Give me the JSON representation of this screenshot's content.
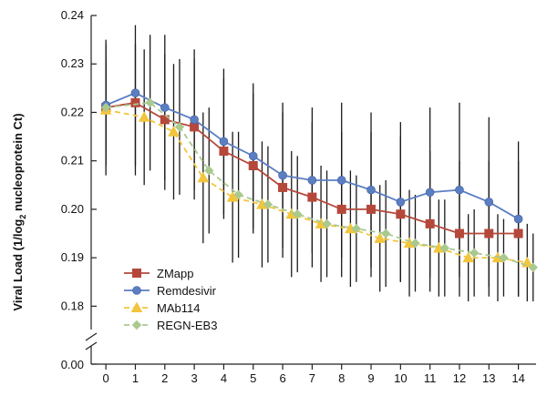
{
  "chart_data": {
    "type": "line",
    "title": "",
    "xlabel": "",
    "ylabel_prefix": "Viral Load (1/log",
    "ylabel_sub": "2",
    "ylabel_suffix": " nucleoprotein Ct)",
    "xlim": [
      -0.5,
      14.6
    ],
    "ylim": [
      0.178,
      0.24
    ],
    "y_break": true,
    "y_break_value_label": "0.00",
    "xticks": [
      0,
      1,
      2,
      3,
      4,
      5,
      6,
      7,
      8,
      9,
      10,
      11,
      12,
      13,
      14
    ],
    "xtick_labels": [
      "0",
      "1",
      "2",
      "3",
      "4",
      "5",
      "6",
      "7",
      "8",
      "9",
      "10",
      "11",
      "12",
      "13",
      "14"
    ],
    "yticks": [
      0.18,
      0.19,
      0.2,
      0.21,
      0.22,
      0.23,
      0.24
    ],
    "ytick_labels": [
      "0.18",
      "0.19",
      "0.20",
      "0.21",
      "0.22",
      "0.23",
      "0.24"
    ],
    "legend_position": "bottom-left",
    "colors": {
      "axis": "#222222",
      "errorbar": "#1a1a1a"
    },
    "series": [
      {
        "name": "ZMapp",
        "color": "#b5483b",
        "marker": "square",
        "dashed": false,
        "x": [
          0,
          1,
          2,
          3,
          4,
          5,
          6,
          7,
          8,
          9,
          10,
          11,
          12,
          13,
          14
        ],
        "y": [
          0.221,
          0.222,
          0.2185,
          0.217,
          0.212,
          0.209,
          0.2045,
          0.2025,
          0.2,
          0.2,
          0.199,
          0.197,
          0.195,
          0.195,
          0.195
        ],
        "err_low": [
          0.207,
          0.207,
          0.204,
          0.202,
          0.198,
          0.195,
          0.19,
          0.188,
          0.186,
          0.186,
          0.185,
          0.183,
          0.182,
          0.182,
          0.182
        ],
        "err_high": [
          0.235,
          0.234,
          0.232,
          0.231,
          0.227,
          0.224,
          0.22,
          0.218,
          0.216,
          0.216,
          0.215,
          0.212,
          0.21,
          0.21,
          0.21
        ]
      },
      {
        "name": "Remdesivir",
        "color": "#5b7ec2",
        "marker": "circle",
        "dashed": false,
        "x": [
          0,
          1,
          2,
          3,
          4,
          5,
          6,
          7,
          8,
          9,
          10,
          11,
          12,
          13,
          14
        ],
        "y": [
          0.2215,
          0.224,
          0.221,
          0.2185,
          0.214,
          0.211,
          0.207,
          0.206,
          0.206,
          0.204,
          0.2015,
          0.2035,
          0.204,
          0.2015,
          0.198
        ],
        "err_low": [
          0.209,
          0.209,
          0.206,
          0.204,
          0.199,
          0.196,
          0.192,
          0.191,
          0.19,
          0.188,
          0.185,
          0.186,
          0.186,
          0.184,
          0.182
        ],
        "err_high": [
          0.234,
          0.238,
          0.236,
          0.233,
          0.229,
          0.226,
          0.222,
          0.221,
          0.222,
          0.22,
          0.218,
          0.221,
          0.222,
          0.219,
          0.214
        ]
      },
      {
        "name": "MAb114",
        "color": "#f2c53d",
        "marker": "triangle",
        "dashed": true,
        "x": [
          0,
          1.3,
          2.3,
          3.3,
          4.3,
          5.3,
          6.3,
          7.3,
          8.3,
          9.3,
          10.3,
          11.3,
          12.3,
          13.3,
          14.3
        ],
        "y": [
          0.2205,
          0.219,
          0.216,
          0.2065,
          0.2025,
          0.201,
          0.199,
          0.197,
          0.196,
          0.194,
          0.193,
          0.192,
          0.19,
          0.19,
          0.189
        ],
        "err_low": [
          0.21,
          0.205,
          0.202,
          0.193,
          0.189,
          0.188,
          0.186,
          0.185,
          0.184,
          0.183,
          0.182,
          0.182,
          0.181,
          0.181,
          0.181
        ],
        "err_high": [
          0.231,
          0.233,
          0.23,
          0.22,
          0.216,
          0.214,
          0.212,
          0.209,
          0.208,
          0.205,
          0.204,
          0.202,
          0.199,
          0.199,
          0.197
        ]
      },
      {
        "name": "REGN-EB3",
        "color": "#a9c98e",
        "marker": "diamond",
        "dashed": true,
        "x": [
          0,
          1.5,
          2.5,
          3.5,
          4.5,
          5.5,
          6.5,
          7.5,
          8.5,
          9.5,
          10.5,
          11.5,
          12.5,
          13.5,
          14.5
        ],
        "y": [
          0.221,
          0.222,
          0.217,
          0.208,
          0.203,
          0.201,
          0.199,
          0.197,
          0.196,
          0.195,
          0.193,
          0.192,
          0.191,
          0.19,
          0.188
        ],
        "err_low": [
          0.212,
          0.208,
          0.203,
          0.195,
          0.19,
          0.189,
          0.187,
          0.186,
          0.185,
          0.184,
          0.183,
          0.182,
          0.182,
          0.182,
          0.181
        ],
        "err_high": [
          0.23,
          0.236,
          0.231,
          0.221,
          0.216,
          0.213,
          0.211,
          0.208,
          0.207,
          0.206,
          0.203,
          0.202,
          0.2,
          0.198,
          0.195
        ]
      }
    ]
  }
}
